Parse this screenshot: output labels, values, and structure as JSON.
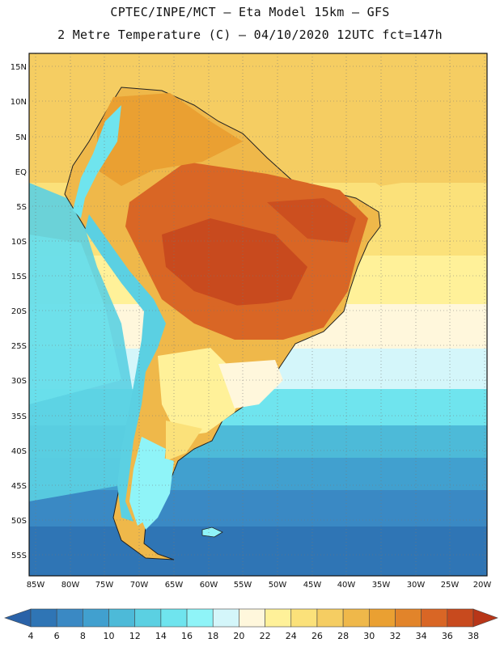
{
  "header": {
    "line1": "CPTEC/INPE/MCT –  Eta Model 15km – GFS",
    "line2": "2 Metre Temperature (C) – 04/10/2020 12UTC fct=147h"
  },
  "map": {
    "region": "South America",
    "lat_labels": [
      "15N",
      "10N",
      "5N",
      "EQ",
      "5S",
      "10S",
      "15S",
      "20S",
      "25S",
      "30S",
      "35S",
      "40S",
      "45S",
      "50S",
      "55S"
    ],
    "lon_labels": [
      "85W",
      "80W",
      "75W",
      "70W",
      "65W",
      "60W",
      "55W",
      "50W",
      "45W",
      "40W",
      "35W",
      "30W",
      "25W",
      "20W"
    ]
  },
  "colorbar": {
    "values": [
      4,
      6,
      8,
      10,
      12,
      14,
      16,
      18,
      20,
      22,
      24,
      26,
      28,
      30,
      32,
      34,
      36,
      38
    ],
    "colors": [
      "#2a62a8",
      "#2f75b5",
      "#3a89c4",
      "#41a0cf",
      "#4dbad8",
      "#5bd0e2",
      "#6fe4ee",
      "#8ff4f8",
      "#d4f6fa",
      "#fff7dc",
      "#fff199",
      "#fbe17a",
      "#f5cd62",
      "#efb84a",
      "#eaa032",
      "#e2842a",
      "#d96625",
      "#c84a1e",
      "#b83618"
    ],
    "left_arrow_color": "#2a62a8",
    "right_arrow_color": "#b83618"
  }
}
